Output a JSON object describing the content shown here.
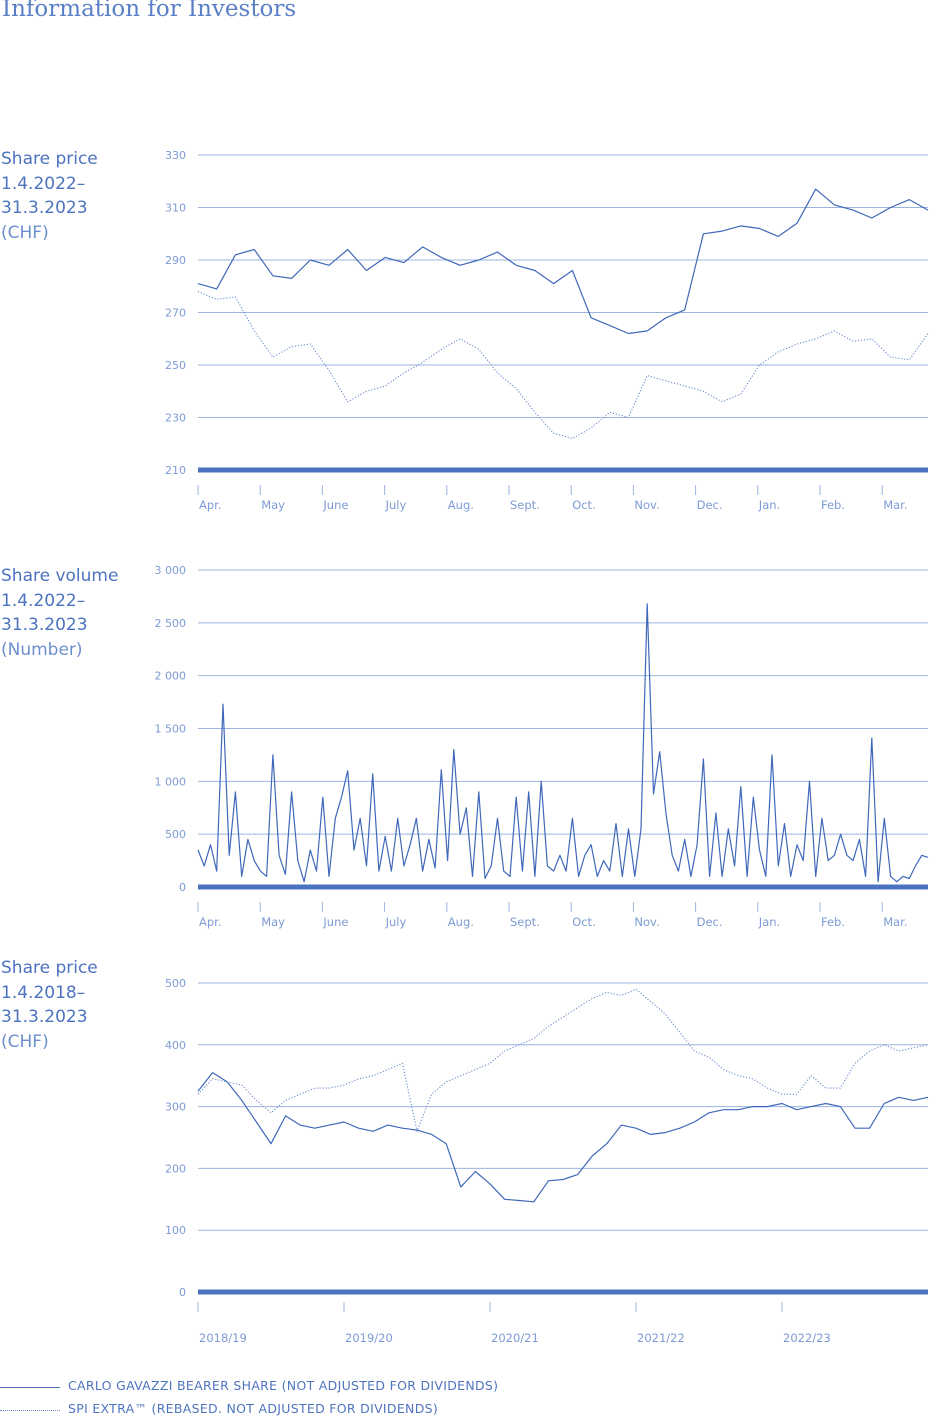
{
  "page": {
    "title": "Information for Investors"
  },
  "colors": {
    "accent": "#4c73bf",
    "grid": "#9cb4e0",
    "baseline": "#4c73bf",
    "tick_text": "#7d9bd4"
  },
  "legend": {
    "share": "CARLO GAVAZZI BEARER SHARE (NOT ADJUSTED FOR DIVIDENDS)",
    "index": "SPI EXTRA™ (REBASED. NOT ADJUSTED FOR DIVIDENDS)"
  },
  "chart_data": [
    {
      "type": "line",
      "label_lines": [
        "Share price",
        "1.4.2022–",
        "31.3.2023",
        "(CHF)"
      ],
      "ylim": [
        210,
        330
      ],
      "yticks": [
        "210",
        "230",
        "250",
        "270",
        "290",
        "310",
        "330"
      ],
      "categories": [
        "Apr.",
        "May",
        "June",
        "July",
        "Aug.",
        "Sept.",
        "Oct.",
        "Nov.",
        "Dec.",
        "Jan.",
        "Feb.",
        "Mar."
      ],
      "series": [
        {
          "name": "CARLO GAVAZZI BEARER SHARE (NOT ADJUSTED FOR DIVIDENDS)",
          "style": "solid",
          "x": [
            0,
            0.3,
            0.6,
            0.9,
            1.2,
            1.5,
            1.8,
            2.1,
            2.4,
            2.7,
            3.0,
            3.3,
            3.6,
            3.9,
            4.2,
            4.5,
            4.8,
            5.1,
            5.4,
            5.7,
            6.0,
            6.3,
            6.6,
            6.9,
            7.2,
            7.5,
            7.8,
            8.1,
            8.4,
            8.7,
            9.0,
            9.3,
            9.6,
            9.9,
            10.2,
            10.5,
            10.8,
            11.1,
            11.4,
            11.7
          ],
          "values": [
            281,
            279,
            292,
            294,
            284,
            283,
            290,
            288,
            294,
            286,
            291,
            289,
            295,
            291,
            288,
            290,
            293,
            288,
            286,
            281,
            286,
            268,
            265,
            262,
            263,
            268,
            271,
            300,
            301,
            303,
            302,
            299,
            304,
            317,
            311,
            309,
            306,
            310,
            313,
            309
          ]
        },
        {
          "name": "SPI EXTRA™ (REBASED. NOT ADJUSTED FOR DIVIDENDS)",
          "style": "dotted",
          "x": [
            0,
            0.3,
            0.6,
            0.9,
            1.2,
            1.5,
            1.8,
            2.1,
            2.4,
            2.7,
            3.0,
            3.3,
            3.6,
            3.9,
            4.2,
            4.5,
            4.8,
            5.1,
            5.4,
            5.7,
            6.0,
            6.3,
            6.6,
            6.9,
            7.2,
            7.5,
            7.8,
            8.1,
            8.4,
            8.7,
            9.0,
            9.3,
            9.6,
            9.9,
            10.2,
            10.5,
            10.8,
            11.1,
            11.4,
            11.7
          ],
          "values": [
            278,
            275,
            276,
            263,
            253,
            257,
            258,
            248,
            236,
            240,
            242,
            247,
            251,
            256,
            260,
            256,
            247,
            241,
            232,
            224,
            222,
            226,
            232,
            230,
            246,
            244,
            242,
            240,
            236,
            239,
            250,
            255,
            258,
            260,
            263,
            259,
            260,
            253,
            252,
            262
          ]
        }
      ]
    },
    {
      "type": "line",
      "label_lines": [
        "Share volume",
        "1.4.2022–",
        "31.3.2023",
        "(Number)"
      ],
      "ylim": [
        0,
        3000
      ],
      "yticks": [
        "0",
        "500",
        "1 000",
        "1 500",
        "2 000",
        "2 500",
        "3 000"
      ],
      "categories": [
        "Apr.",
        "May",
        "June",
        "July",
        "Aug.",
        "Sept.",
        "Oct.",
        "Nov.",
        "Dec.",
        "Jan.",
        "Feb.",
        "Mar."
      ],
      "series": [
        {
          "name": "CARLO GAVAZZI BEARER SHARE (NOT ADJUSTED FOR DIVIDENDS)",
          "style": "solid",
          "x": [
            0,
            0.1,
            0.2,
            0.3,
            0.4,
            0.5,
            0.6,
            0.7,
            0.8,
            0.9,
            1.0,
            1.1,
            1.2,
            1.3,
            1.4,
            1.5,
            1.6,
            1.7,
            1.8,
            1.9,
            2.0,
            2.1,
            2.2,
            2.3,
            2.4,
            2.5,
            2.6,
            2.7,
            2.8,
            2.9,
            3.0,
            3.1,
            3.2,
            3.3,
            3.4,
            3.5,
            3.6,
            3.7,
            3.8,
            3.9,
            4.0,
            4.1,
            4.2,
            4.3,
            4.4,
            4.5,
            4.6,
            4.7,
            4.8,
            4.9,
            5.0,
            5.1,
            5.2,
            5.3,
            5.4,
            5.5,
            5.6,
            5.7,
            5.8,
            5.9,
            6.0,
            6.1,
            6.2,
            6.3,
            6.4,
            6.5,
            6.6,
            6.7,
            6.8,
            6.9,
            7.0,
            7.1,
            7.2,
            7.3,
            7.4,
            7.5,
            7.6,
            7.7,
            7.8,
            7.9,
            8.0,
            8.1,
            8.2,
            8.3,
            8.4,
            8.5,
            8.6,
            8.7,
            8.8,
            8.9,
            9.0,
            9.1,
            9.2,
            9.3,
            9.4,
            9.5,
            9.6,
            9.7,
            9.8,
            9.9,
            10.0,
            10.1,
            10.2,
            10.3,
            10.4,
            10.5,
            10.6,
            10.7,
            10.8,
            10.9,
            11.0,
            11.1,
            11.2,
            11.3,
            11.4,
            11.5,
            11.6,
            11.7
          ],
          "values": [
            350,
            200,
            400,
            150,
            1730,
            300,
            900,
            100,
            450,
            250,
            150,
            100,
            1250,
            300,
            120,
            900,
            250,
            50,
            350,
            150,
            850,
            100,
            650,
            850,
            1100,
            350,
            650,
            200,
            1070,
            150,
            480,
            150,
            650,
            200,
            400,
            650,
            150,
            450,
            180,
            1110,
            250,
            1300,
            500,
            750,
            100,
            900,
            80,
            200,
            650,
            150,
            100,
            850,
            150,
            900,
            100,
            1000,
            200,
            150,
            300,
            150,
            650,
            100,
            300,
            400,
            100,
            250,
            150,
            600,
            100,
            550,
            100,
            550,
            2680,
            880,
            1280,
            700,
            300,
            150,
            450,
            100,
            400,
            1210,
            100,
            700,
            100,
            550,
            200,
            950,
            100,
            850,
            350,
            100,
            1250,
            200,
            600,
            100,
            400,
            250,
            1000,
            100,
            650,
            250,
            300,
            500,
            300,
            250,
            450,
            100,
            1410,
            50,
            650,
            100,
            50,
            100,
            80,
            200,
            300,
            280
          ]
        }
      ]
    },
    {
      "type": "line",
      "label_lines": [
        "Share price",
        "1.4.2018–",
        "31.3.2023",
        "(CHF)"
      ],
      "ylim": [
        0,
        500
      ],
      "yticks": [
        "0",
        "100",
        "200",
        "300",
        "400",
        "500"
      ],
      "categories": [
        "2018/19",
        "2019/20",
        "2020/21",
        "2021/22",
        "2022/23"
      ],
      "series": [
        {
          "name": "CARLO GAVAZZI BEARER SHARE (NOT ADJUSTED FOR DIVIDENDS)",
          "style": "solid",
          "x": [
            0,
            0.1,
            0.2,
            0.3,
            0.4,
            0.5,
            0.6,
            0.7,
            0.8,
            0.9,
            1.0,
            1.1,
            1.2,
            1.3,
            1.4,
            1.5,
            1.6,
            1.7,
            1.8,
            1.9,
            2.0,
            2.1,
            2.2,
            2.3,
            2.4,
            2.5,
            2.6,
            2.7,
            2.8,
            2.9,
            3.0,
            3.1,
            3.2,
            3.3,
            3.4,
            3.5,
            3.6,
            3.7,
            3.8,
            3.9,
            4.0,
            4.1,
            4.2,
            4.3,
            4.4,
            4.5,
            4.6,
            4.7,
            4.8,
            4.9,
            5.0
          ],
          "values": [
            325,
            355,
            340,
            310,
            275,
            240,
            285,
            270,
            265,
            270,
            275,
            265,
            260,
            270,
            265,
            262,
            255,
            240,
            170,
            195,
            175,
            150,
            148,
            146,
            180,
            182,
            190,
            220,
            240,
            270,
            265,
            255,
            258,
            265,
            275,
            290,
            295,
            295,
            300,
            300,
            305,
            295,
            300,
            305,
            300,
            265,
            265,
            305,
            315,
            310,
            315
          ]
        },
        {
          "name": "SPI EXTRA™ (REBASED. NOT ADJUSTED FOR DIVIDENDS)",
          "style": "dotted",
          "x": [
            0,
            0.1,
            0.2,
            0.3,
            0.4,
            0.5,
            0.6,
            0.7,
            0.8,
            0.9,
            1.0,
            1.1,
            1.2,
            1.3,
            1.4,
            1.5,
            1.6,
            1.7,
            1.8,
            1.9,
            2.0,
            2.1,
            2.2,
            2.3,
            2.4,
            2.5,
            2.6,
            2.7,
            2.8,
            2.9,
            3.0,
            3.1,
            3.2,
            3.3,
            3.4,
            3.5,
            3.6,
            3.7,
            3.8,
            3.9,
            4.0,
            4.1,
            4.2,
            4.3,
            4.4,
            4.5,
            4.6,
            4.7,
            4.8,
            4.9,
            5.0
          ],
          "values": [
            320,
            345,
            340,
            335,
            310,
            290,
            310,
            320,
            330,
            330,
            335,
            345,
            350,
            360,
            370,
            260,
            320,
            340,
            350,
            360,
            370,
            390,
            400,
            410,
            430,
            445,
            460,
            475,
            485,
            480,
            490,
            470,
            450,
            420,
            390,
            380,
            360,
            350,
            345,
            330,
            320,
            320,
            350,
            330,
            330,
            370,
            390,
            400,
            390,
            395,
            400
          ]
        }
      ]
    }
  ]
}
